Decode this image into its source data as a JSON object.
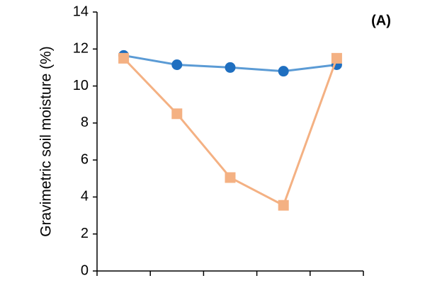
{
  "chart_data": {
    "type": "line",
    "ylabel": "Gravimetric soil moisture (%)",
    "annotation": "(A)",
    "categories": [
      null,
      null,
      null,
      null,
      null
    ],
    "series": [
      {
        "color": "#5b9bd5",
        "marker_color": "#1f6fc0",
        "marker": "circle",
        "values": [
          11.65,
          11.15,
          11.0,
          10.8,
          11.15
        ]
      },
      {
        "color": "#f4b183",
        "marker_color": "#f4b183",
        "marker": "square",
        "values": [
          11.5,
          8.5,
          5.05,
          3.55,
          11.5
        ]
      }
    ],
    "ylim": [
      0,
      14
    ],
    "yticks": [
      0,
      2,
      4,
      6,
      8,
      10,
      12,
      14
    ],
    "grid": false
  }
}
